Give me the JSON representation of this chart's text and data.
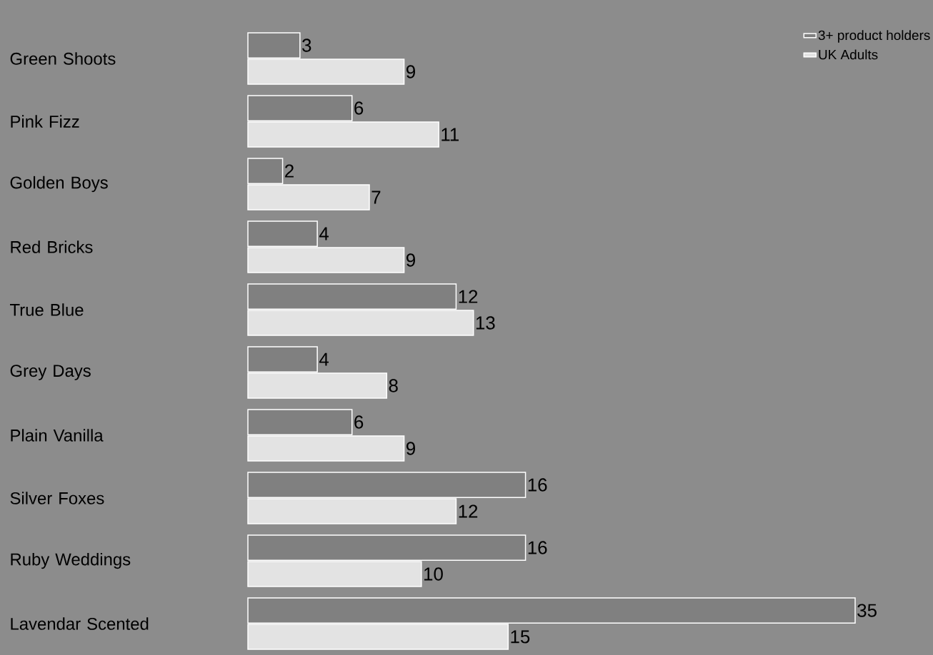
{
  "chart_data": {
    "type": "bar",
    "orientation": "horizontal",
    "categories": [
      "Green Shoots",
      "Pink Fizz",
      "Golden Boys",
      "Red Bricks",
      "True Blue",
      "Grey Days",
      "Plain Vanilla",
      "Silver Foxes",
      "Ruby Weddings",
      "Lavendar Scented"
    ],
    "series": [
      {
        "name": "3+ product holders",
        "color": "#808080",
        "values": [
          3,
          6,
          2,
          4,
          12,
          4,
          6,
          16,
          16,
          35
        ]
      },
      {
        "name": "UK Adults",
        "color": "#e3e3e3",
        "values": [
          9,
          11,
          7,
          9,
          13,
          8,
          9,
          12,
          10,
          15
        ]
      }
    ],
    "data_labels": true,
    "legend": "top right",
    "tick_labels": "y",
    "grid": false
  }
}
